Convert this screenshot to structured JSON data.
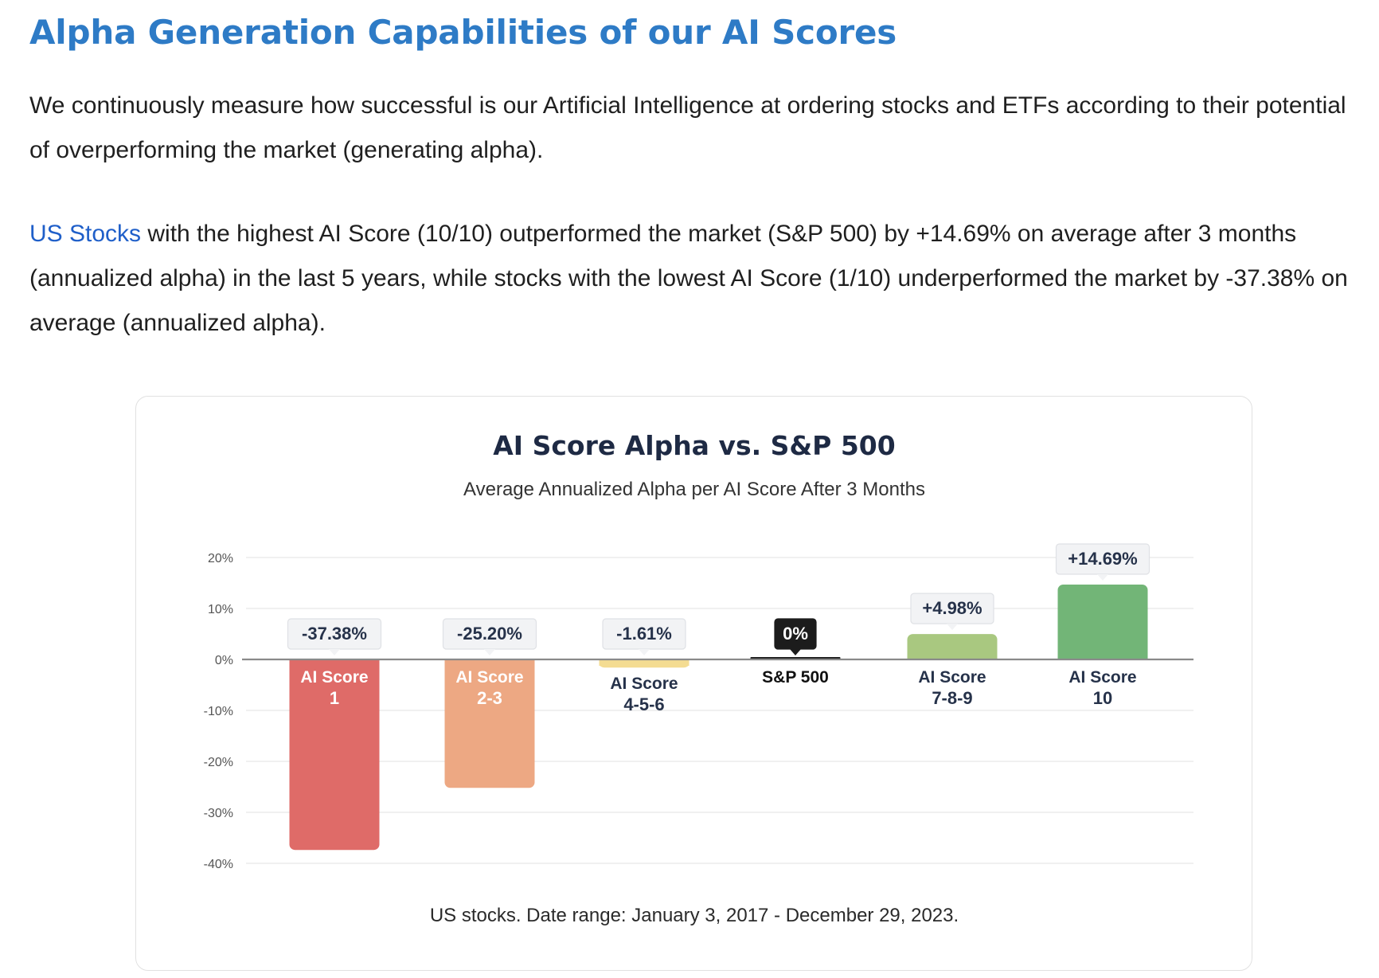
{
  "heading": "Alpha Generation Capabilities of our AI Scores",
  "paragraph1": "We continuously measure how successful is our Artificial Intelligence at ordering stocks and ETFs according to their potential of overperforming the market (generating alpha).",
  "paragraph2": {
    "link_text": "US Stocks",
    "text": " with the highest AI Score (10/10) outperformed the market (S&P 500) by +14.69% on average after 3 months (annualized alpha) in the last 5 years, while stocks with the lowest AI Score (1/10) underperformed the market by -37.38% on average (annualized alpha)."
  },
  "chart_data": {
    "type": "bar",
    "title": "AI Score Alpha vs. S&P 500",
    "subtitle": "Average Annualized Alpha per AI Score After 3 Months",
    "footnote": "US stocks. Date range: January 3, 2017 - December 29, 2023.",
    "ylim": [
      -40,
      20
    ],
    "yticks": [
      20,
      10,
      0,
      -10,
      -20,
      -30,
      -40
    ],
    "ytick_labels": [
      "20%",
      "10%",
      "0%",
      "-10%",
      "-20%",
      "-30%",
      "-40%"
    ],
    "grid": true,
    "categories": [
      {
        "line1": "AI Score",
        "line2": "1"
      },
      {
        "line1": "AI Score",
        "line2": "2-3"
      },
      {
        "line1": "AI Score",
        "line2": "4-5-6"
      },
      {
        "line1": "S&P 500",
        "line2": ""
      },
      {
        "line1": "AI Score",
        "line2": "7-8-9"
      },
      {
        "line1": "AI Score",
        "line2": "10"
      }
    ],
    "values": [
      -37.38,
      -25.2,
      -1.61,
      0,
      4.98,
      14.69
    ],
    "value_labels": [
      "-37.38%",
      "-25.20%",
      "-1.61%",
      "0%",
      "+4.98%",
      "+14.69%"
    ],
    "colors": [
      "#df6b68",
      "#eda883",
      "#f4dc92",
      "#1c1c1c",
      "#a9c880",
      "#72b577"
    ]
  }
}
